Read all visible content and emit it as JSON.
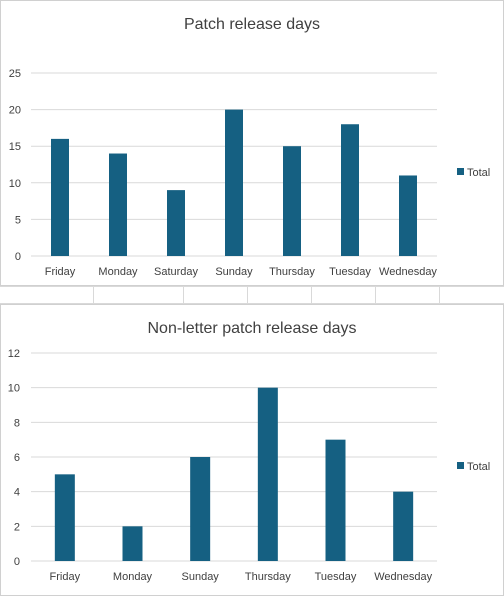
{
  "colors": {
    "bar": "#156082",
    "grid": "#d9d9d9",
    "text": "#404040"
  },
  "chart_data": [
    {
      "type": "bar",
      "title": "Patch release days",
      "categories": [
        "Friday",
        "Monday",
        "Saturday",
        "Sunday",
        "Thursday",
        "Tuesday",
        "Wednesday"
      ],
      "series": [
        {
          "name": "Total",
          "values": [
            16,
            14,
            9,
            20,
            15,
            18,
            11
          ]
        }
      ],
      "ylim": [
        0,
        25
      ],
      "yticks": [
        0,
        5,
        10,
        15,
        20,
        25
      ],
      "grid": true,
      "legend": "right"
    },
    {
      "type": "bar",
      "title": "Non-letter patch release days",
      "categories": [
        "Friday",
        "Monday",
        "Sunday",
        "Thursday",
        "Tuesday",
        "Wednesday"
      ],
      "series": [
        {
          "name": "Total",
          "values": [
            5,
            2,
            6,
            10,
            7,
            4
          ]
        }
      ],
      "ylim": [
        0,
        12
      ],
      "yticks": [
        0,
        2,
        4,
        6,
        8,
        10,
        12
      ],
      "grid": true,
      "legend": "right"
    }
  ]
}
